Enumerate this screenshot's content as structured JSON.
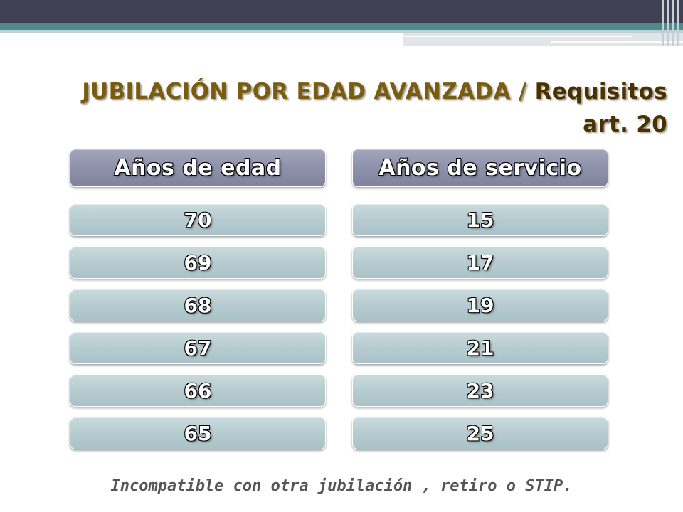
{
  "slide": {
    "title_main": "JUBILACIÓN POR EDAD AVANZADA",
    "title_separator": " / ",
    "title_sub_line1": "Requisitos",
    "title_sub_line2": "art. 20",
    "columns": [
      {
        "header": "Años de edad",
        "values": [
          "70",
          "69",
          "68",
          "67",
          "66",
          "65"
        ]
      },
      {
        "header": "Años de servicio",
        "values": [
          "15",
          "17",
          "19",
          "21",
          "23",
          "25"
        ]
      }
    ],
    "footnote": "Incompatible con otra jubilación , retiro o STIP."
  },
  "colors": {
    "top_bar": "#3f4053",
    "teal_stripe": "#4e8b8b",
    "title_text": "#7a5c10",
    "header_box": "#8f93ab",
    "value_box": "#b7ccd1",
    "footnote_text": "#555555"
  }
}
